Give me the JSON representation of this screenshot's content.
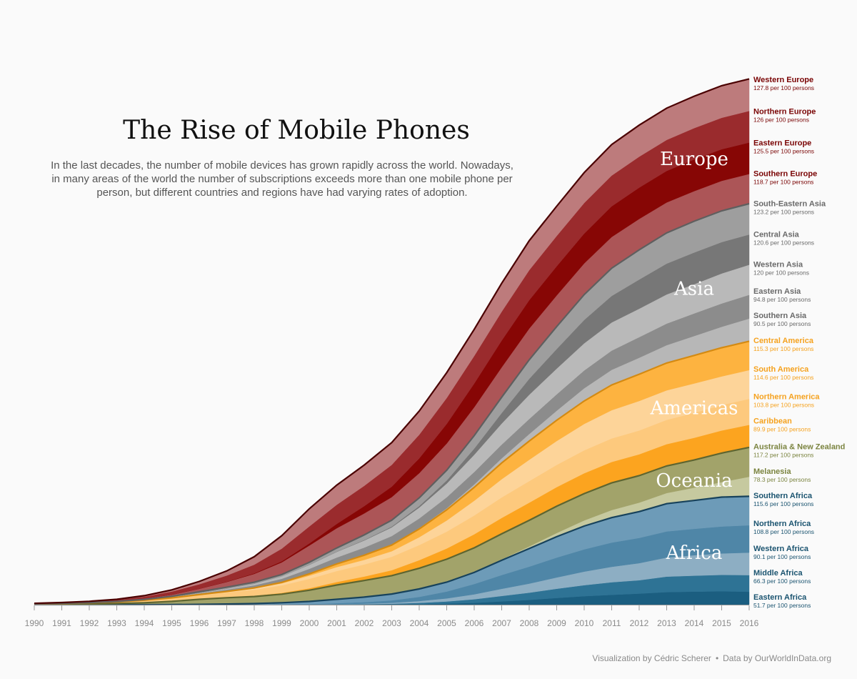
{
  "page": {
    "title": "The Rise of Mobile Phones",
    "subtitle": "In the last decades, the number of mobile devices has grown rapidly across the world. Nowadays, in many areas of the world the number of subscriptions exceeds more than one mobile phone per person, but different countries and regions have had varying rates of adoption.",
    "caption_left": "Visualization by Cédric Scherer",
    "caption_sep": "•",
    "caption_right": "Data by OurWorldInData.org"
  },
  "chart_data": {
    "type": "area",
    "stacked": true,
    "title": "The Rise of Mobile Phones",
    "x": [
      1990,
      1991,
      1992,
      1993,
      1994,
      1995,
      1996,
      1997,
      1998,
      1999,
      2000,
      2001,
      2002,
      2003,
      2004,
      2005,
      2006,
      2007,
      2008,
      2009,
      2010,
      2011,
      2012,
      2013,
      2014,
      2015,
      2016
    ],
    "xlabel": "",
    "ylabel": "",
    "y_axis_visible": false,
    "grid": false,
    "legend": "right-end labels",
    "value_unit": "per 100 persons",
    "groups": [
      {
        "name": "Africa",
        "color": "#1f5f86"
      },
      {
        "name": "Oceania",
        "color": "#7f8a3e"
      },
      {
        "name": "Americas",
        "color": "#f5a623"
      },
      {
        "name": "Asia",
        "color": "#6e6e6e"
      },
      {
        "name": "Europe",
        "color": "#7d0a0a"
      }
    ],
    "series": [
      {
        "name": "Eastern Africa",
        "group": "Africa",
        "label_value": "51.7 per 100 persons",
        "color": "#1b5e80",
        "values": [
          0,
          0,
          0,
          0,
          0,
          0,
          0,
          0,
          0,
          0.1,
          0.2,
          0.5,
          0.8,
          1.3,
          2.4,
          4.2,
          7.4,
          13.1,
          19.1,
          26.7,
          33.9,
          39.4,
          44.3,
          50.3,
          52.1,
          53.6,
          51.7
        ]
      },
      {
        "name": "Middle Africa",
        "group": "Africa",
        "label_value": "66.3 per 100 persons",
        "color": "#2e7395",
        "values": [
          0,
          0,
          0,
          0,
          0,
          0,
          0,
          0,
          0,
          0.2,
          0.4,
          1,
          1.6,
          2.5,
          4.6,
          8.5,
          14.3,
          21.6,
          28.9,
          36.9,
          44.1,
          50.3,
          53.3,
          61.7,
          63.6,
          65.4,
          66.3
        ]
      },
      {
        "name": "Western Africa",
        "group": "Africa",
        "label_value": "90.1 per 100 persons",
        "color": "#8daec3",
        "values": [
          0,
          0,
          0,
          0,
          0,
          0,
          0,
          0,
          0,
          0.2,
          0.3,
          0.8,
          1.9,
          3.7,
          7.5,
          12.3,
          19.8,
          28.5,
          36.2,
          45.2,
          54,
          61.4,
          68.3,
          76.2,
          81.7,
          85.7,
          90.1
        ]
      },
      {
        "name": "Northern Africa",
        "group": "Africa",
        "label_value": "108.8 per 100 persons",
        "color": "#4f86a7",
        "values": [
          0,
          0,
          0,
          0,
          0,
          0,
          0,
          0.1,
          0.3,
          0.7,
          1.6,
          3.8,
          6.1,
          9.5,
          16.6,
          27.4,
          40.9,
          55.1,
          67.7,
          79.1,
          88.9,
          96.9,
          100.6,
          104.3,
          105.2,
          107.4,
          108.8
        ]
      },
      {
        "name": "Southern Africa",
        "group": "Africa",
        "label_value": "115.6 per 100 persons",
        "color": "#6d9bb8",
        "values": [
          0,
          0,
          0,
          0,
          0,
          0.4,
          1.1,
          2.4,
          4.1,
          6.6,
          10.3,
          15.2,
          19.9,
          25.6,
          31.8,
          37.5,
          46.4,
          58.8,
          72,
          83.4,
          92.8,
          99.6,
          104.9,
          110.6,
          113.4,
          117.3,
          115.6
        ]
      },
      {
        "name": "Melanesia",
        "group": "Oceania",
        "label_value": "78.3 per 100 persons",
        "color": "#c6c99f",
        "values": [
          0,
          0,
          0,
          0,
          0,
          0,
          0,
          0,
          0.1,
          0.2,
          0.3,
          0.5,
          0.6,
          0.8,
          1,
          1.5,
          2.1,
          4.2,
          8.5,
          14.9,
          22.6,
          30.2,
          36.1,
          42.6,
          51,
          59.9,
          78.3
        ]
      },
      {
        "name": "Australia & New Zealand",
        "group": "Oceania",
        "label_value": "117.2 per 100 persons",
        "color": "#a2a36a",
        "values": [
          0.9,
          1.6,
          2.5,
          4.6,
          7.8,
          12.8,
          20.4,
          25.2,
          28,
          33.9,
          44.5,
          56.8,
          65.5,
          72.3,
          81.3,
          90.1,
          95.9,
          101.5,
          104.3,
          106.7,
          107.2,
          108.4,
          107.6,
          108.2,
          110.6,
          115.8,
          117.2
        ]
      },
      {
        "name": "Caribbean",
        "group": "Americas",
        "label_value": "89.9 per 100 persons",
        "color": "#fca41f",
        "values": [
          0,
          0.1,
          0.2,
          0.2,
          0.3,
          0.5,
          0.8,
          1.6,
          3.1,
          5.2,
          7.9,
          11.7,
          16.1,
          21.8,
          32.5,
          42.8,
          54.1,
          63.6,
          70.4,
          76.3,
          81.2,
          83.6,
          85.1,
          86.8,
          88.5,
          90.3,
          89.9
        ]
      },
      {
        "name": "Northern America",
        "group": "Americas",
        "label_value": "103.8 per 100 persons",
        "color": "#fdc97d",
        "values": [
          2,
          2.9,
          4.4,
          6,
          8.9,
          12.1,
          15.6,
          19.3,
          24.2,
          29.8,
          37.5,
          44.1,
          48.1,
          53.6,
          60.3,
          67.2,
          75.1,
          81.9,
          86.1,
          88.8,
          91.6,
          93.8,
          95.2,
          97.1,
          99.7,
          101.4,
          103.8
        ]
      },
      {
        "name": "South America",
        "group": "Americas",
        "label_value": "114.6 per 100 persons",
        "color": "#fdd499",
        "values": [
          0,
          0,
          0.1,
          0.2,
          0.5,
          0.8,
          1.6,
          3,
          5.1,
          8.3,
          12.7,
          15.6,
          18.4,
          22.3,
          31.2,
          44.5,
          58.9,
          72.6,
          85.1,
          95.3,
          105.3,
          112.7,
          117.8,
          117.9,
          117.3,
          114.5,
          114.6
        ]
      },
      {
        "name": "Central America",
        "group": "Americas",
        "label_value": "115.3 per 100 persons",
        "color": "#fdb340",
        "values": [
          0,
          0,
          0.1,
          0.2,
          0.3,
          0.5,
          0.7,
          1.1,
          2,
          3.8,
          7.3,
          12.6,
          18.3,
          24.6,
          33,
          42.5,
          53.4,
          64.8,
          74.7,
          82.9,
          91.6,
          100.6,
          106.6,
          108.9,
          111.8,
          114.4,
          115.3
        ]
      },
      {
        "name": "Southern Asia",
        "group": "Asia",
        "label_value": "90.5 per 100 persons",
        "color": "#b7b7b7",
        "values": [
          0,
          0,
          0,
          0,
          0,
          0,
          0.1,
          0.1,
          0.2,
          0.3,
          0.4,
          0.7,
          1.2,
          2.2,
          3.6,
          6.3,
          11.7,
          18.5,
          28.1,
          38,
          50.8,
          60.6,
          66,
          71.4,
          77.6,
          83.7,
          90.5
        ]
      },
      {
        "name": "Eastern Asia",
        "group": "Asia",
        "label_value": "94.8 per 100 persons",
        "color": "#8c8c8c",
        "values": [
          0.1,
          0.2,
          0.3,
          0.6,
          1.4,
          2.8,
          4.8,
          7.4,
          10.2,
          14.1,
          19.5,
          25.1,
          29.4,
          33.8,
          38.3,
          43.9,
          49.5,
          54.8,
          60.2,
          65.6,
          71,
          76.8,
          82,
          86.2,
          90.1,
          93,
          94.8
        ]
      },
      {
        "name": "Western Asia",
        "group": "Asia",
        "label_value": "120 per 100 persons",
        "color": "#b9b9b9",
        "values": [
          0.1,
          0.2,
          0.3,
          0.4,
          0.7,
          1.2,
          2.1,
          3.8,
          6.4,
          9.9,
          15.8,
          22.5,
          28.6,
          34.7,
          43.5,
          54.9,
          69.2,
          84.3,
          96.6,
          102.6,
          108.3,
          112.5,
          113.7,
          116.2,
          116.8,
          119.6,
          120
        ]
      },
      {
        "name": "Central Asia",
        "group": "Asia",
        "label_value": "120.6 per 100 persons",
        "color": "#777777",
        "values": [
          0,
          0,
          0,
          0,
          0,
          0,
          0.1,
          0.1,
          0.2,
          0.3,
          0.5,
          0.9,
          1.6,
          3.1,
          6.2,
          12.2,
          24.3,
          41.9,
          63.8,
          78.2,
          93.4,
          105.8,
          116.4,
          123,
          126.3,
          125.3,
          120.6
        ]
      },
      {
        "name": "South-Eastern Asia",
        "group": "Asia",
        "label_value": "123.2 per 100 persons",
        "color": "#9e9e9e",
        "values": [
          0.1,
          0.2,
          0.4,
          0.7,
          1.3,
          2.4,
          4,
          5.5,
          5.7,
          6.9,
          10.1,
          14.5,
          20.3,
          25.5,
          32.4,
          41,
          51.8,
          63,
          75.8,
          89.5,
          100.9,
          110.6,
          118.4,
          122.7,
          125.1,
          124.6,
          123.2
        ]
      },
      {
        "name": "Southern Europe",
        "group": "Europe",
        "label_value": "118.7 per 100 persons",
        "color": "#ac5557",
        "values": [
          0.2,
          0.4,
          0.7,
          1.5,
          3.2,
          6.5,
          12,
          21.1,
          33.4,
          48.5,
          66.7,
          79,
          85.8,
          92.1,
          98.8,
          106.6,
          113.4,
          119.6,
          124.7,
          124.3,
          124.8,
          124.7,
          123.4,
          121.5,
          119.9,
          119.9,
          118.7
        ]
      },
      {
        "name": "Eastern Europe",
        "group": "Europe",
        "label_value": "125.5 per 100 persons",
        "color": "#870605",
        "values": [
          0,
          0,
          0,
          0,
          0.1,
          0.2,
          0.5,
          1.2,
          2.2,
          4.1,
          8.3,
          17.1,
          29.2,
          41.7,
          58.9,
          78.1,
          94.4,
          106.7,
          113.2,
          116.4,
          119.3,
          122.5,
          125.1,
          126,
          126.8,
          126.2,
          125.5
        ]
      },
      {
        "name": "Northern Europe",
        "group": "Europe",
        "label_value": "126 per 100 persons",
        "color": "#9a2b2d",
        "values": [
          1.4,
          2.1,
          3,
          4.6,
          7.5,
          12.2,
          17.7,
          24.5,
          34.5,
          50.5,
          67.9,
          76.4,
          81.1,
          87.1,
          94.6,
          103.6,
          110.3,
          115.3,
          119.8,
          121,
          121.7,
          122.7,
          123.6,
          123.8,
          124.9,
          125.6,
          126
        ]
      },
      {
        "name": "Western Europe",
        "group": "Europe",
        "label_value": "127.8 per 100 persons",
        "color": "#bd7b7c",
        "values": [
          0.5,
          0.8,
          1.3,
          2.3,
          3.9,
          6.6,
          11.3,
          18.3,
          31.6,
          51.7,
          70.5,
          78.6,
          82.9,
          88.9,
          94.4,
          100.9,
          106.1,
          113.2,
          117.5,
          118.8,
          121.3,
          123.8,
          125.6,
          126.7,
          127.3,
          127.9,
          127.8
        ]
      }
    ]
  }
}
